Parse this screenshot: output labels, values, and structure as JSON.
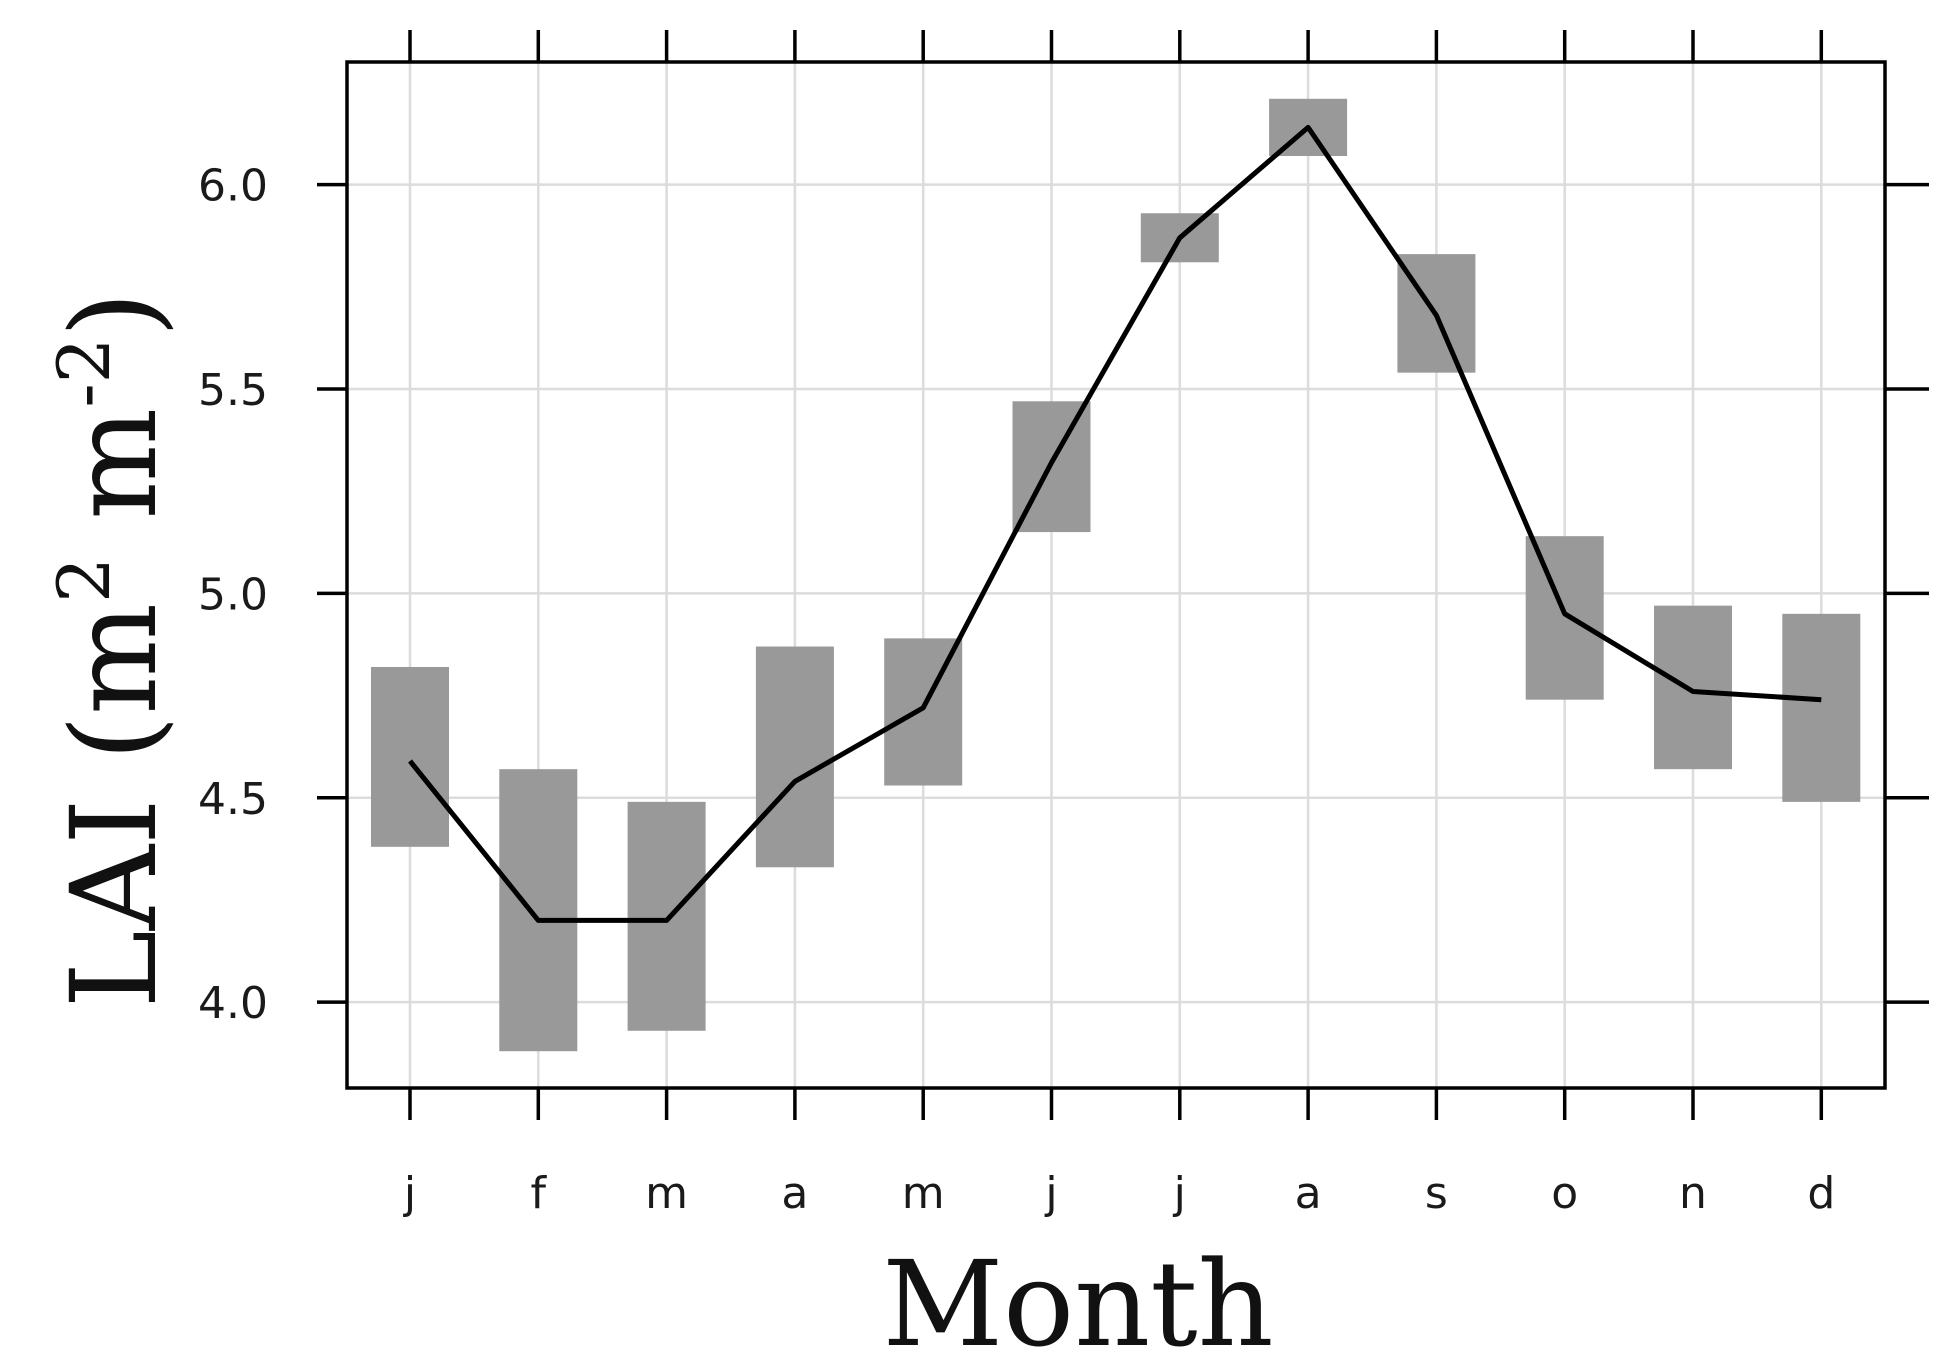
{
  "chart_data": {
    "type": "line",
    "title": "",
    "xlabel": "Month",
    "ylabel": {
      "prefix": "LAI (m",
      "sup1": "2",
      "middle": " m",
      "sup2": "-2",
      "suffix": ")"
    },
    "categories": [
      "j",
      "f",
      "m",
      "a",
      "m",
      "j",
      "j",
      "a",
      "s",
      "o",
      "n",
      "d"
    ],
    "series": [
      {
        "values": [
          4.59,
          4.2,
          4.2,
          4.54,
          4.72,
          5.32,
          5.87,
          6.14,
          5.68,
          4.95,
          4.76,
          4.74
        ]
      }
    ],
    "ranges": [
      [
        4.38,
        4.82
      ],
      [
        3.88,
        4.57
      ],
      [
        3.93,
        4.49
      ],
      [
        4.33,
        4.87
      ],
      [
        4.53,
        4.89
      ],
      [
        5.15,
        5.47
      ],
      [
        5.81,
        5.93
      ],
      [
        6.07,
        6.21
      ],
      [
        5.54,
        5.83
      ],
      [
        4.74,
        5.14
      ],
      [
        4.57,
        4.97
      ],
      [
        4.49,
        4.95
      ]
    ],
    "ylim": [
      3.79,
      6.3
    ],
    "yticks": [
      "4.0",
      "4.5",
      "5.0",
      "5.5",
      "6.0"
    ],
    "grid": true,
    "colors": {
      "band": "#999999",
      "line": "#000000",
      "grid": "#dcdcdc",
      "axis": "#000000"
    }
  }
}
